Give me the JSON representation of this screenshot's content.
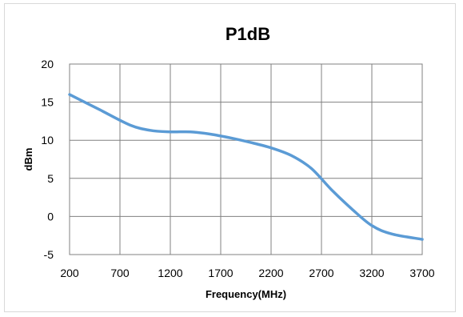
{
  "chart_data": {
    "type": "line",
    "title": "P1dB",
    "xlabel": "Frequency(MHz)",
    "ylabel": "dBm",
    "xlim": [
      200,
      3700
    ],
    "ylim": [
      -5,
      20
    ],
    "xticks": [
      "200",
      "700",
      "1200",
      "1700",
      "2200",
      "2700",
      "3200",
      "3700"
    ],
    "yticks": [
      "20",
      "15",
      "10",
      "5",
      "0",
      "-5"
    ],
    "grid": true,
    "legend": "none",
    "series_color": "#5b9bd5",
    "series": [
      {
        "x": [
          200,
          500,
          800,
          1000,
          1200,
          1400,
          1600,
          1800,
          2000,
          2200,
          2400,
          2600,
          2800,
          3000,
          3200,
          3400,
          3700
        ],
        "values": [
          16,
          14,
          12,
          11.3,
          11.1,
          11.1,
          10.8,
          10.3,
          9.7,
          9,
          8,
          6.3,
          3.5,
          1,
          -1.2,
          -2.3,
          -3
        ]
      }
    ]
  }
}
